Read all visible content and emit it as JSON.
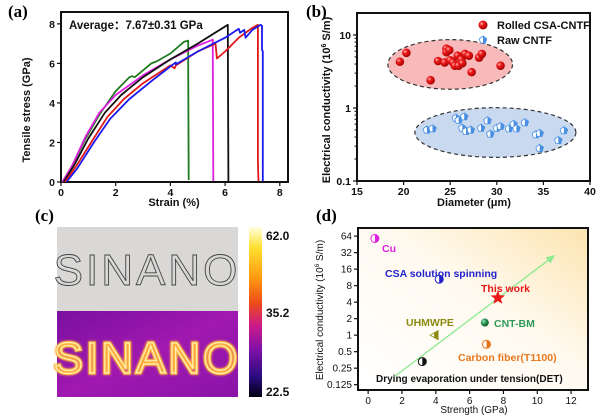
{
  "panels": {
    "a": {
      "label": "(a)"
    },
    "b": {
      "label": "(b)"
    },
    "c": {
      "label": "(c)"
    },
    "d": {
      "label": "(d)"
    }
  },
  "chart_data": [
    {
      "id": "a",
      "type": "line",
      "title": "",
      "annotation": "Average：7.67±0.31 GPa",
      "xlabel": "Strain (%)",
      "ylabel": "Tensile stress (GPa)",
      "xlim": [
        0,
        8.3
      ],
      "ylim": [
        0,
        8.6
      ],
      "xticks": [
        "0",
        "2",
        "4",
        "6",
        "8"
      ],
      "yticks": [
        "0",
        "2",
        "4",
        "6",
        "8"
      ],
      "series": [
        {
          "name": "green",
          "color": "#1f7a1f",
          "points": [
            [
              0.05,
              0
            ],
            [
              0.4,
              0.8
            ],
            [
              0.9,
              2.2
            ],
            [
              1.4,
              3.4
            ],
            [
              2.0,
              4.6
            ],
            [
              2.5,
              5.3
            ],
            [
              2.6,
              5.35
            ],
            [
              2.7,
              5.3
            ],
            [
              3.3,
              6.0
            ],
            [
              3.5,
              6.1
            ],
            [
              4.0,
              6.5
            ],
            [
              4.5,
              7.1
            ],
            [
              4.65,
              7.15
            ],
            [
              4.65,
              6.0
            ],
            [
              4.67,
              0.1
            ]
          ]
        },
        {
          "name": "magenta",
          "color": "#e020e0",
          "points": [
            [
              0.05,
              0
            ],
            [
              0.4,
              0.8
            ],
            [
              0.9,
              2.3
            ],
            [
              1.4,
              3.5
            ],
            [
              2.0,
              4.4
            ],
            [
              3.0,
              5.4
            ],
            [
              4.0,
              6.2
            ],
            [
              5.0,
              6.9
            ],
            [
              5.55,
              7.2
            ],
            [
              5.55,
              6.5
            ],
            [
              5.57,
              0.05
            ]
          ]
        },
        {
          "name": "black",
          "color": "#111111",
          "points": [
            [
              0.1,
              0
            ],
            [
              0.5,
              0.9
            ],
            [
              1.0,
              2.2
            ],
            [
              1.6,
              3.5
            ],
            [
              2.2,
              4.4
            ],
            [
              3.0,
              5.3
            ],
            [
              4.0,
              6.2
            ],
            [
              5.0,
              7.0
            ],
            [
              6.1,
              7.95
            ],
            [
              6.12,
              0.05
            ]
          ]
        },
        {
          "name": "red",
          "color": "#e01818",
          "points": [
            [
              0.15,
              0
            ],
            [
              0.6,
              0.9
            ],
            [
              1.1,
              2.0
            ],
            [
              1.7,
              3.3
            ],
            [
              2.3,
              4.2
            ],
            [
              3.0,
              5.0
            ],
            [
              4.0,
              5.9
            ],
            [
              4.15,
              5.75
            ],
            [
              4.2,
              5.9
            ],
            [
              5.0,
              6.6
            ],
            [
              5.65,
              7.0
            ],
            [
              5.7,
              6.25
            ],
            [
              6.0,
              6.6
            ],
            [
              6.5,
              7.3
            ],
            [
              7.0,
              7.8
            ],
            [
              7.2,
              7.95
            ],
            [
              7.2,
              1.0
            ],
            [
              7.22,
              0.05
            ]
          ]
        },
        {
          "name": "blue",
          "color": "#1a1aee",
          "points": [
            [
              0.2,
              0
            ],
            [
              0.6,
              0.7
            ],
            [
              1.2,
              2.0
            ],
            [
              1.8,
              3.2
            ],
            [
              2.5,
              4.2
            ],
            [
              3.3,
              5.1
            ],
            [
              4.1,
              5.95
            ],
            [
              4.2,
              6.05
            ],
            [
              4.2,
              5.95
            ],
            [
              5.0,
              6.6
            ],
            [
              6.0,
              7.3
            ],
            [
              6.5,
              7.75
            ],
            [
              6.55,
              7.55
            ],
            [
              6.7,
              7.7
            ],
            [
              6.75,
              7.3
            ],
            [
              7.0,
              7.7
            ],
            [
              7.3,
              7.95
            ],
            [
              7.35,
              7.9
            ],
            [
              7.35,
              6.7
            ],
            [
              7.38,
              6.6
            ],
            [
              7.38,
              0.05
            ]
          ]
        }
      ]
    },
    {
      "id": "b",
      "type": "scatter",
      "xlabel": "Diameter (μm)",
      "ylabel": "Electrical conductivity (10⁶ S/m)",
      "ylabel_parts": [
        "Electrical conductivity (10",
        "6",
        " S/m)"
      ],
      "xlim": [
        15,
        40
      ],
      "ylim": [
        0.1,
        20
      ],
      "yscale": "log",
      "xticks": [
        "15",
        "20",
        "25",
        "30",
        "35",
        "40"
      ],
      "yticks": [
        "0.1",
        "1",
        "10"
      ],
      "legend_position": "top-right",
      "series": [
        {
          "name": "Rolled CSA-CNTF",
          "color": "#e8141a",
          "ellipse_fill": "#f7b9b9",
          "points": [
            [
              19.6,
              4.3
            ],
            [
              20.3,
              5.7
            ],
            [
              22.9,
              2.4
            ],
            [
              23.7,
              4.4
            ],
            [
              24.4,
              4.2
            ],
            [
              24.6,
              6.5
            ],
            [
              24.6,
              5.8
            ],
            [
              24.9,
              6.2
            ],
            [
              25.0,
              4.5
            ],
            [
              25.3,
              4.2
            ],
            [
              25.5,
              3.8
            ],
            [
              25.8,
              5.2
            ],
            [
              25.9,
              3.8
            ],
            [
              26.2,
              4.6
            ],
            [
              26.3,
              4.1
            ],
            [
              26.6,
              5.5
            ],
            [
              27.0,
              5.2
            ],
            [
              27.3,
              3.1
            ],
            [
              28.1,
              4.9
            ],
            [
              28.4,
              5.5
            ],
            [
              30.4,
              3.8
            ]
          ]
        },
        {
          "name": "Raw CNTF",
          "color": "#4a8fe0",
          "ellipse_fill": "#c9daf0",
          "points": [
            [
              22.5,
              0.5
            ],
            [
              23.1,
              0.52
            ],
            [
              25.6,
              0.73
            ],
            [
              25.9,
              0.68
            ],
            [
              26.3,
              0.53
            ],
            [
              26.5,
              0.76
            ],
            [
              26.7,
              0.48
            ],
            [
              27.2,
              0.5
            ],
            [
              28.3,
              0.53
            ],
            [
              29.0,
              0.67
            ],
            [
              29.3,
              0.44
            ],
            [
              30.0,
              0.53
            ],
            [
              30.4,
              0.56
            ],
            [
              31.3,
              0.52
            ],
            [
              31.8,
              0.6
            ],
            [
              32.1,
              0.52
            ],
            [
              33.0,
              0.63
            ],
            [
              34.2,
              0.43
            ],
            [
              34.6,
              0.45
            ],
            [
              34.6,
              0.28
            ],
            [
              36.6,
              0.36
            ],
            [
              37.2,
              0.49
            ]
          ]
        }
      ]
    },
    {
      "id": "c",
      "type": "heatmap",
      "photo_text": "SINANO",
      "colorbar": {
        "max": "62.0",
        "mid": "35.2",
        "min": "22.5",
        "colors": [
          "#ffffe0",
          "#ffd820",
          "#ff8a10",
          "#e8401e",
          "#c01890",
          "#7a10a8",
          "#2a0c7a",
          "#000010"
        ]
      }
    },
    {
      "id": "d",
      "type": "scatter",
      "xlabel": "Strength (GPa)",
      "ylabel": "Electrical conductivity (10⁶ S/m)",
      "ylabel_parts": [
        "Electrical conductivity (10",
        "6",
        " S/m)"
      ],
      "xlim": [
        -0.6,
        13
      ],
      "ylim": [
        0.1,
        90
      ],
      "yscale": "log2",
      "xticks": [
        "0",
        "2",
        "4",
        "6",
        "8",
        "10",
        "12"
      ],
      "yticks": [
        "0.125",
        "0.25",
        "0.5",
        "1",
        "2",
        "4",
        "8",
        "16",
        "32",
        "64"
      ],
      "ytick_values": [
        0.125,
        0.25,
        0.5,
        1,
        2,
        4,
        8,
        16,
        32,
        64
      ],
      "xtick_values": [
        0,
        2,
        4,
        6,
        8,
        10,
        12
      ],
      "points": [
        {
          "label": "Cu",
          "x": 0.4,
          "y": 58,
          "color": "#e020e0",
          "marker": "half-circle"
        },
        {
          "label": "CSA solution spinning",
          "x": 4.2,
          "y": 10.5,
          "color": "#2222cc",
          "marker": "half-circle"
        },
        {
          "label": "This work",
          "x": 7.67,
          "y": 4.8,
          "color": "#e81818",
          "marker": "star"
        },
        {
          "label": "CNT-BM",
          "x": 6.9,
          "y": 1.7,
          "color": "#2e9a5a",
          "marker": "circle"
        },
        {
          "label": "UHMWPE",
          "x": 3.9,
          "y": 1.0,
          "color": "#8a8a10",
          "marker": "half-triangle"
        },
        {
          "label": "Carbon fiber(T1100)",
          "x": 7.0,
          "y": 0.68,
          "color": "#e87820",
          "marker": "half-circle"
        },
        {
          "label": "",
          "x": 3.2,
          "y": 0.33,
          "color": "#111111",
          "marker": "half-circle"
        }
      ],
      "arrow": {
        "from": [
          1.5,
          0.17
        ],
        "to": [
          11,
          28
        ],
        "color": "#8ee88e"
      },
      "caption": "Drying evaporation under tension(DET)"
    }
  ]
}
